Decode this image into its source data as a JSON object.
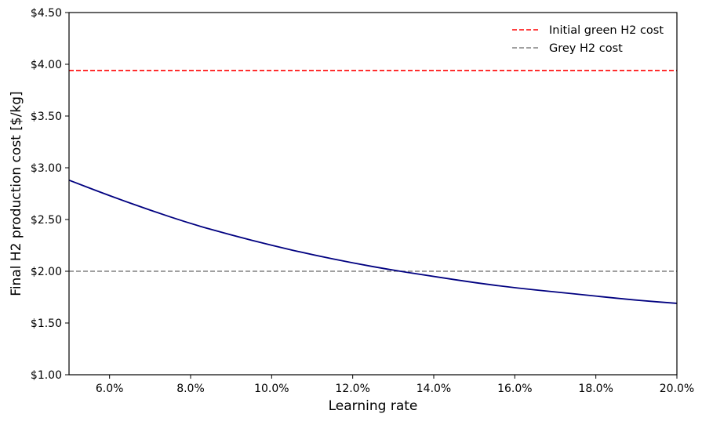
{
  "chart_data": {
    "type": "line",
    "title": "",
    "xlabel": "Learning rate",
    "ylabel": "Final H2 production cost [$/kg]",
    "xlim": [
      0.05,
      0.2
    ],
    "ylim": [
      1.0,
      4.5
    ],
    "x_ticks": [
      0.06,
      0.08,
      0.1,
      0.12,
      0.14,
      0.16,
      0.18,
      0.2
    ],
    "x_tick_labels": [
      "6.0%",
      "8.0%",
      "10.0%",
      "12.0%",
      "14.0%",
      "16.0%",
      "18.0%",
      "20.0%"
    ],
    "y_ticks": [
      1.0,
      1.5,
      2.0,
      2.5,
      3.0,
      3.5,
      4.0,
      4.5
    ],
    "y_tick_labels": [
      "$1.00",
      "$1.50",
      "$2.00",
      "$2.50",
      "$3.00",
      "$3.50",
      "$4.00",
      "$4.50"
    ],
    "grid": false,
    "legend_position": "top-right",
    "series": [
      {
        "color": "#000080",
        "style": "solid",
        "x": [
          0.05,
          0.06,
          0.07,
          0.08,
          0.09,
          0.1,
          0.11,
          0.12,
          0.13,
          0.14,
          0.15,
          0.16,
          0.17,
          0.18,
          0.19,
          0.2
        ],
        "y": [
          2.88,
          2.73,
          2.59,
          2.46,
          2.35,
          2.25,
          2.16,
          2.08,
          2.01,
          1.95,
          1.89,
          1.84,
          1.8,
          1.76,
          1.72,
          1.69
        ]
      }
    ],
    "reference_lines": [
      {
        "name": "Initial green H2 cost",
        "y": 3.94,
        "color": "#ff0000",
        "style": "dashed"
      },
      {
        "name": "Grey H2 cost",
        "y": 2.0,
        "color": "#808080",
        "style": "dashed"
      }
    ]
  }
}
